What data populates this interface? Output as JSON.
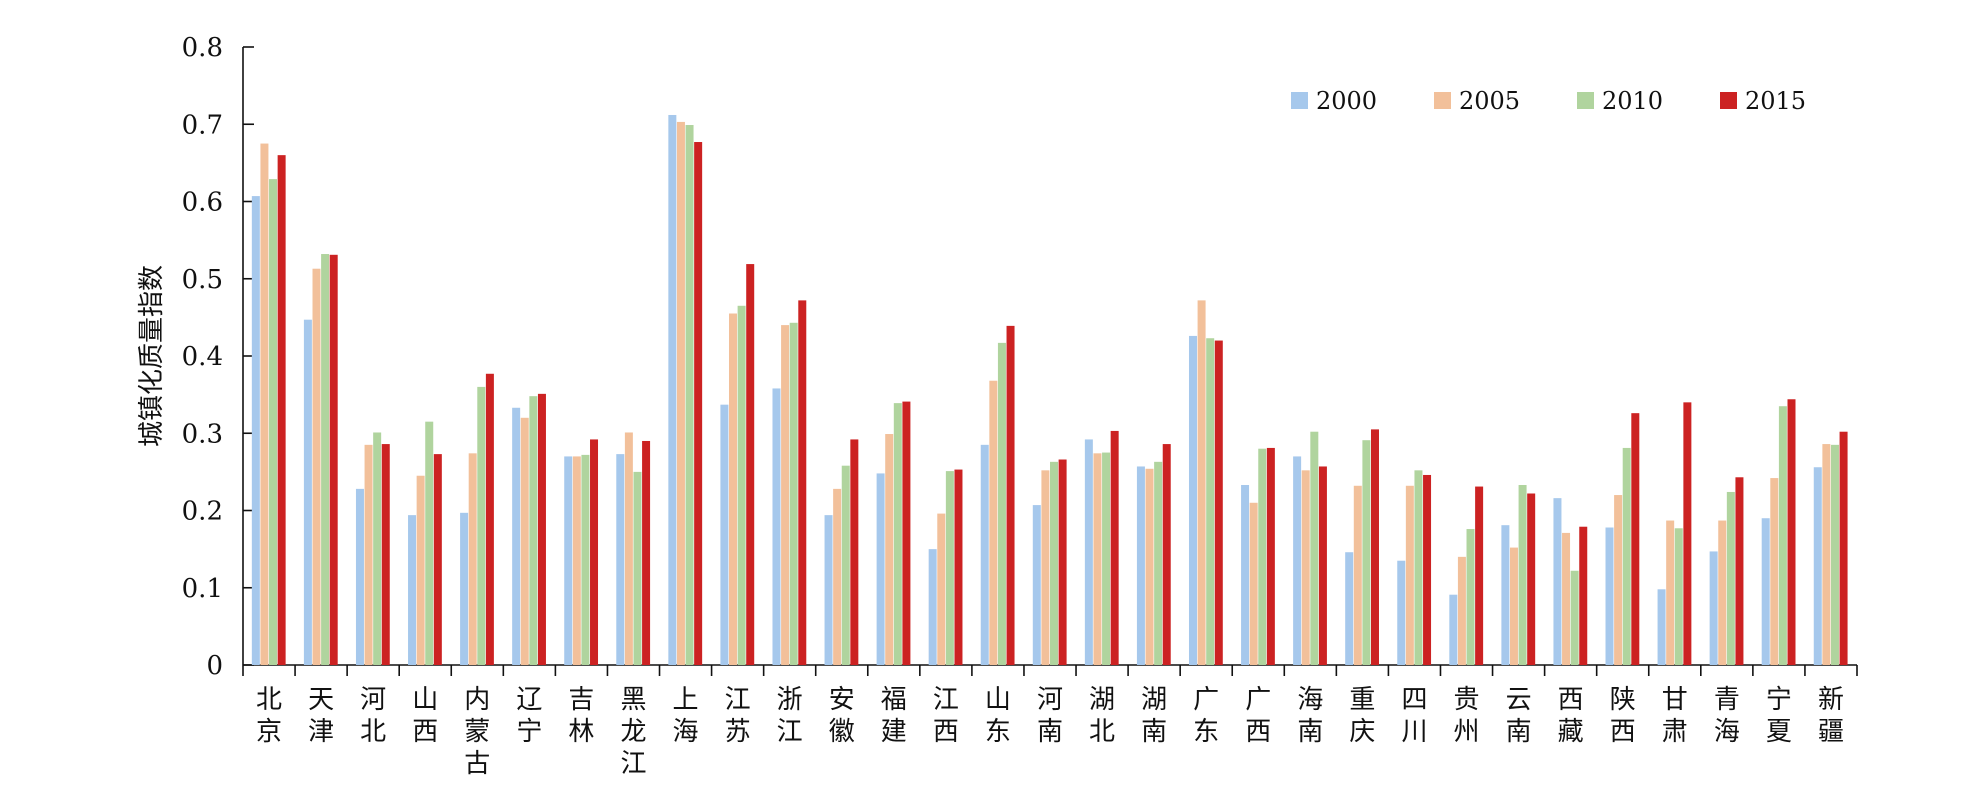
{
  "chart_data": {
    "type": "bar",
    "ylabel": "城镇化质量指数",
    "xlabel": "",
    "ylim": [
      0,
      0.8
    ],
    "yticks": [
      "0",
      "0.1",
      "0.2",
      "0.3",
      "0.4",
      "0.5",
      "0.6",
      "0.7",
      "0.8"
    ],
    "legend_position": "top-right",
    "grid": false,
    "categories": [
      "北京",
      "天津",
      "河北",
      "山西",
      "内蒙古",
      "辽宁",
      "吉林",
      "黑龙江",
      "上海",
      "江苏",
      "浙江",
      "安徽",
      "福建",
      "江西",
      "山东",
      "河南",
      "湖北",
      "湖南",
      "广东",
      "广西",
      "海南",
      "重庆",
      "四川",
      "贵州",
      "云南",
      "西藏",
      "陕西",
      "甘肃",
      "青海",
      "宁夏",
      "新疆"
    ],
    "series": [
      {
        "name": "2000",
        "color": "#a6c8ec",
        "values": [
          0.607,
          0.447,
          0.228,
          0.194,
          0.197,
          0.333,
          0.27,
          0.273,
          0.712,
          0.337,
          0.358,
          0.194,
          0.248,
          0.15,
          0.285,
          0.207,
          0.292,
          0.257,
          0.426,
          0.233,
          0.27,
          0.146,
          0.135,
          0.091,
          0.181,
          0.216,
          0.178,
          0.098,
          0.147,
          0.19,
          0.256
        ]
      },
      {
        "name": "2005",
        "color": "#f2c09a",
        "values": [
          0.675,
          0.513,
          0.285,
          0.245,
          0.274,
          0.32,
          0.27,
          0.301,
          0.703,
          0.455,
          0.44,
          0.228,
          0.299,
          0.196,
          0.368,
          0.252,
          0.274,
          0.254,
          0.472,
          0.21,
          0.252,
          0.232,
          0.232,
          0.14,
          0.152,
          0.171,
          0.22,
          0.187,
          0.187,
          0.242,
          0.286
        ]
      },
      {
        "name": "2010",
        "color": "#b0d49e",
        "values": [
          0.629,
          0.532,
          0.301,
          0.315,
          0.36,
          0.348,
          0.272,
          0.25,
          0.699,
          0.465,
          0.443,
          0.258,
          0.339,
          0.251,
          0.417,
          0.263,
          0.275,
          0.263,
          0.423,
          0.28,
          0.302,
          0.291,
          0.252,
          0.176,
          0.233,
          0.122,
          0.281,
          0.177,
          0.224,
          0.335,
          0.285
        ]
      },
      {
        "name": "2015",
        "color": "#cc2222",
        "values": [
          0.66,
          0.531,
          0.286,
          0.273,
          0.377,
          0.351,
          0.292,
          0.29,
          0.677,
          0.519,
          0.472,
          0.292,
          0.341,
          0.253,
          0.439,
          0.266,
          0.303,
          0.286,
          0.42,
          0.281,
          0.257,
          0.305,
          0.246,
          0.231,
          0.222,
          0.179,
          0.326,
          0.34,
          0.243,
          0.344,
          0.302
        ]
      }
    ]
  }
}
